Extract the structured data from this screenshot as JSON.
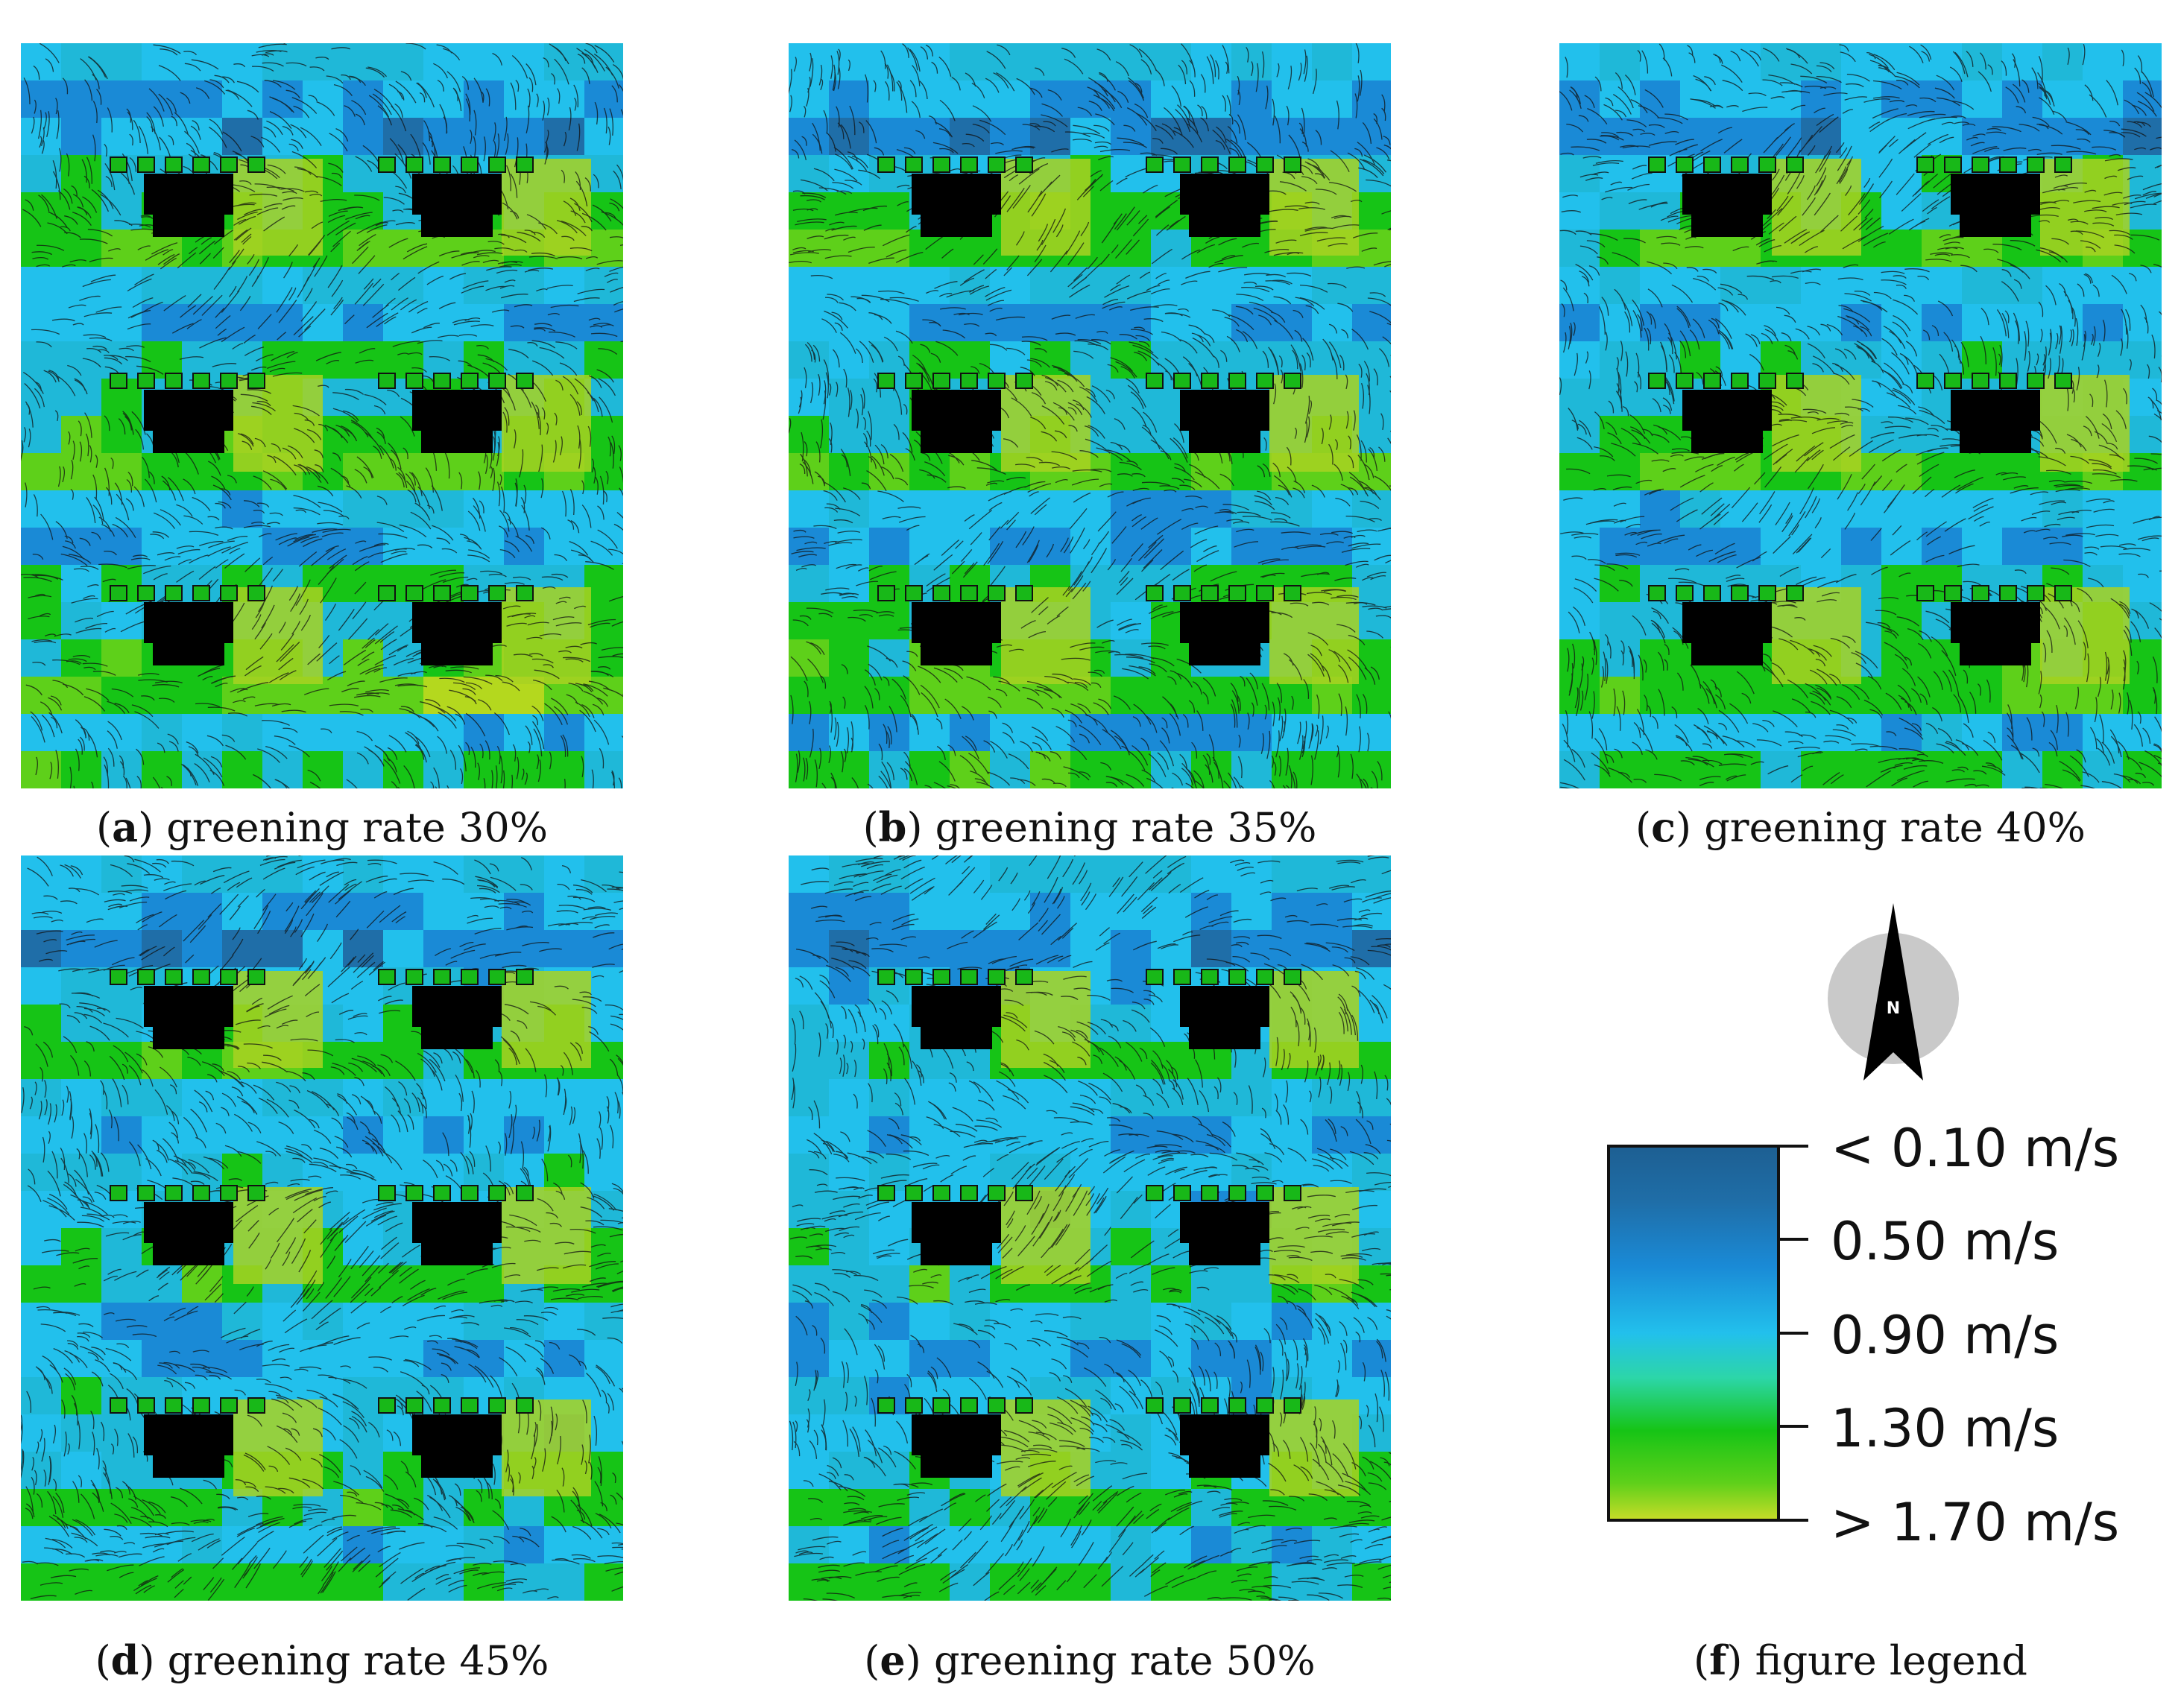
{
  "panels": [
    {
      "letter": "a",
      "caption": "greening rate 30%",
      "greening_rate_percent": 30
    },
    {
      "letter": "b",
      "caption": "greening rate 35%",
      "greening_rate_percent": 35
    },
    {
      "letter": "c",
      "caption": "greening rate 40%",
      "greening_rate_percent": 40
    },
    {
      "letter": "d",
      "caption": "greening rate 45%",
      "greening_rate_percent": 45
    },
    {
      "letter": "e",
      "caption": "greening rate 50%",
      "greening_rate_percent": 50
    }
  ],
  "legend": {
    "letter": "f",
    "caption": "figure legend",
    "north_label": "N",
    "labels": [
      "< 0.10 m/s",
      "0.50  m/s",
      "0.90  m/s",
      "1.30  m/s",
      "> 1.70 m/s"
    ],
    "colors": [
      "#1f6ea8",
      "#1a8ad6",
      "#22c0ec",
      "#16c416",
      "#b4d81e"
    ]
  },
  "colors": {
    "building": "#000000",
    "streamline": "#111111"
  }
}
